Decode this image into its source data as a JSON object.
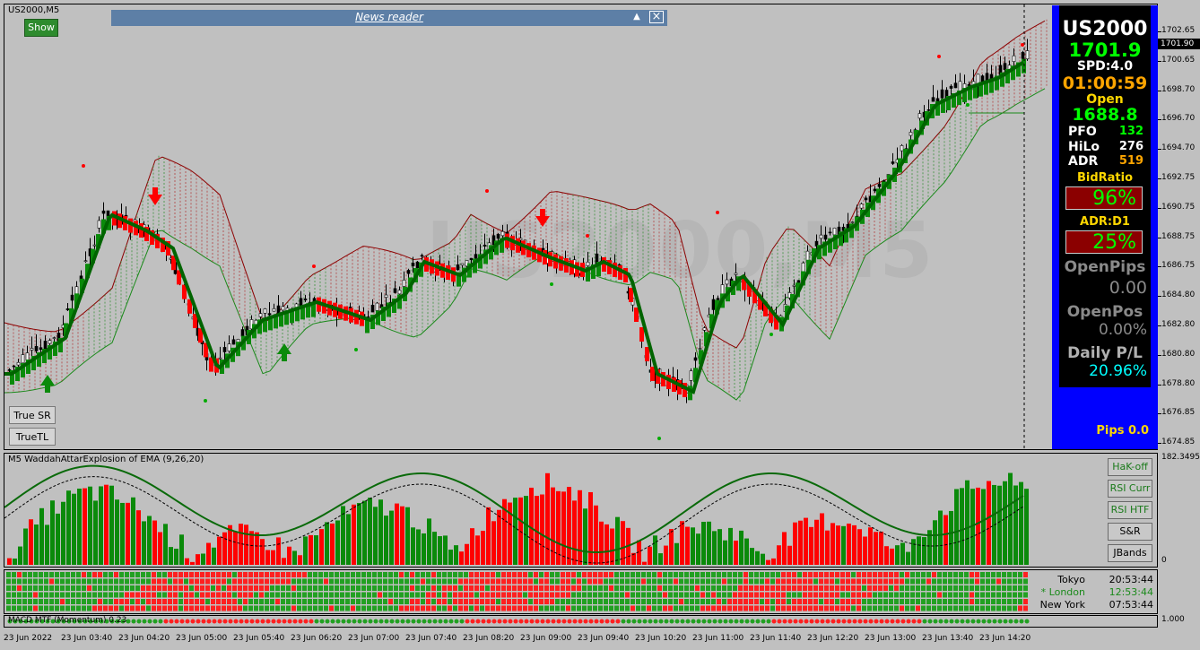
{
  "window": {
    "chart_title": "US2000,M5",
    "show_button": "Show",
    "watermark": "US2000,M5"
  },
  "news_reader": {
    "title": "News reader",
    "minimize_glyph": "▲",
    "close_glyph": "×"
  },
  "left_buttons": {
    "true_sr": "True SR",
    "true_tl": "TrueTL"
  },
  "price_axis": {
    "labels": [
      "1702.65",
      "1700.65",
      "1698.70",
      "1696.70",
      "1694.70",
      "1692.75",
      "1690.75",
      "1688.75",
      "1686.75",
      "1684.80",
      "1682.80",
      "1680.80",
      "1678.80",
      "1676.85",
      "1674.85"
    ],
    "current_price": "1701.90",
    "current_color": "#000000"
  },
  "sub_axis": {
    "wae_top": "182.3495",
    "wae_zero": "0",
    "grid_label": "0",
    "dots_label": "1.000"
  },
  "info_panel": {
    "symbol": "US2000",
    "price": "1701.9",
    "spread": "SPD:4.0",
    "timer": "01:00:59",
    "open_label": "Open",
    "open_value": "1688.8",
    "pfo_label": "PFO",
    "pfo_value": "132",
    "hilo_label": "HiLo",
    "hilo_value": "276",
    "adr_label": "ADR",
    "adr_value": "519",
    "bidratio_label": "BidRatio",
    "bidratio_value": "96%",
    "adrd1_label": "ADR:D1",
    "adrd1_value": "25%",
    "openpips_label": "OpenPips",
    "openpips_value": "0.00",
    "openpos_label": "OpenPos",
    "openpos_value": "0.00%",
    "dailypl_label": "Daily P/L",
    "dailypl_value": "20.96%",
    "pips": "Pips 0.0",
    "colors": {
      "price": "#00ff00",
      "timer": "#ffa500",
      "bidratio": "#ffd700",
      "daily": "#00ffff",
      "panel_bg": "#0000ff"
    }
  },
  "indicator": {
    "wae_label": "M5 WaddahAttarExplosion of EMA (9,26,20)",
    "macd_label": "MACD MTF (Momentum) 0.23"
  },
  "right_buttons": [
    "HaK-off",
    "RSI Curr",
    "RSI HTF",
    "S&R",
    "JBands"
  ],
  "sessions": [
    {
      "city": "Tokyo",
      "time": "20:53:44",
      "active": false
    },
    {
      "city": "* London",
      "time": "12:53:44",
      "active": true
    },
    {
      "city": "New York",
      "time": "07:53:44",
      "active": false
    }
  ],
  "time_axis": [
    "23 Jun 2022",
    "23 Jun 03:40",
    "23 Jun 04:20",
    "23 Jun 05:00",
    "23 Jun 05:40",
    "23 Jun 06:20",
    "23 Jun 07:00",
    "23 Jun 07:40",
    "23 Jun 08:20",
    "23 Jun 09:00",
    "23 Jun 09:40",
    "23 Jun 10:20",
    "23 Jun 11:00",
    "23 Jun 11:40",
    "23 Jun 12:20",
    "23 Jun 13:00",
    "23 Jun 13:40",
    "23 Jun 14:20"
  ]
}
